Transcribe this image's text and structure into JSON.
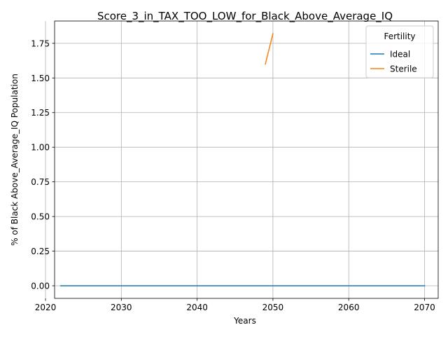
{
  "chart_data": {
    "type": "line",
    "title": "Score_3_in_TAX_TOO_LOW_for_Black_Above_Average_IQ",
    "xlabel": "Years",
    "ylabel": "% of Black Above_Average_IQ Population",
    "xlim": [
      2021.2,
      2071.8
    ],
    "ylim": [
      -0.091,
      1.911
    ],
    "xticks": [
      2020,
      2030,
      2040,
      2050,
      2060,
      2070
    ],
    "xtick_labels": [
      "2020",
      "2030",
      "2040",
      "2050",
      "2060",
      "2070"
    ],
    "yticks": [
      0.0,
      0.25,
      0.5,
      0.75,
      1.0,
      1.25,
      1.5,
      1.75
    ],
    "ytick_labels": [
      "0.00",
      "0.25",
      "0.50",
      "0.75",
      "1.00",
      "1.25",
      "1.50",
      "1.75"
    ],
    "grid": true,
    "legend": {
      "title": "Fertility",
      "placement": "top-right"
    },
    "series": [
      {
        "name": "Ideal",
        "color": "#1f77b4",
        "x": [
          2022,
          2070
        ],
        "y": [
          0.0,
          0.0
        ]
      },
      {
        "name": "Sterile",
        "color": "#ff7f0e",
        "x": [
          2049,
          2050
        ],
        "y": [
          1.6,
          1.82
        ]
      }
    ]
  }
}
